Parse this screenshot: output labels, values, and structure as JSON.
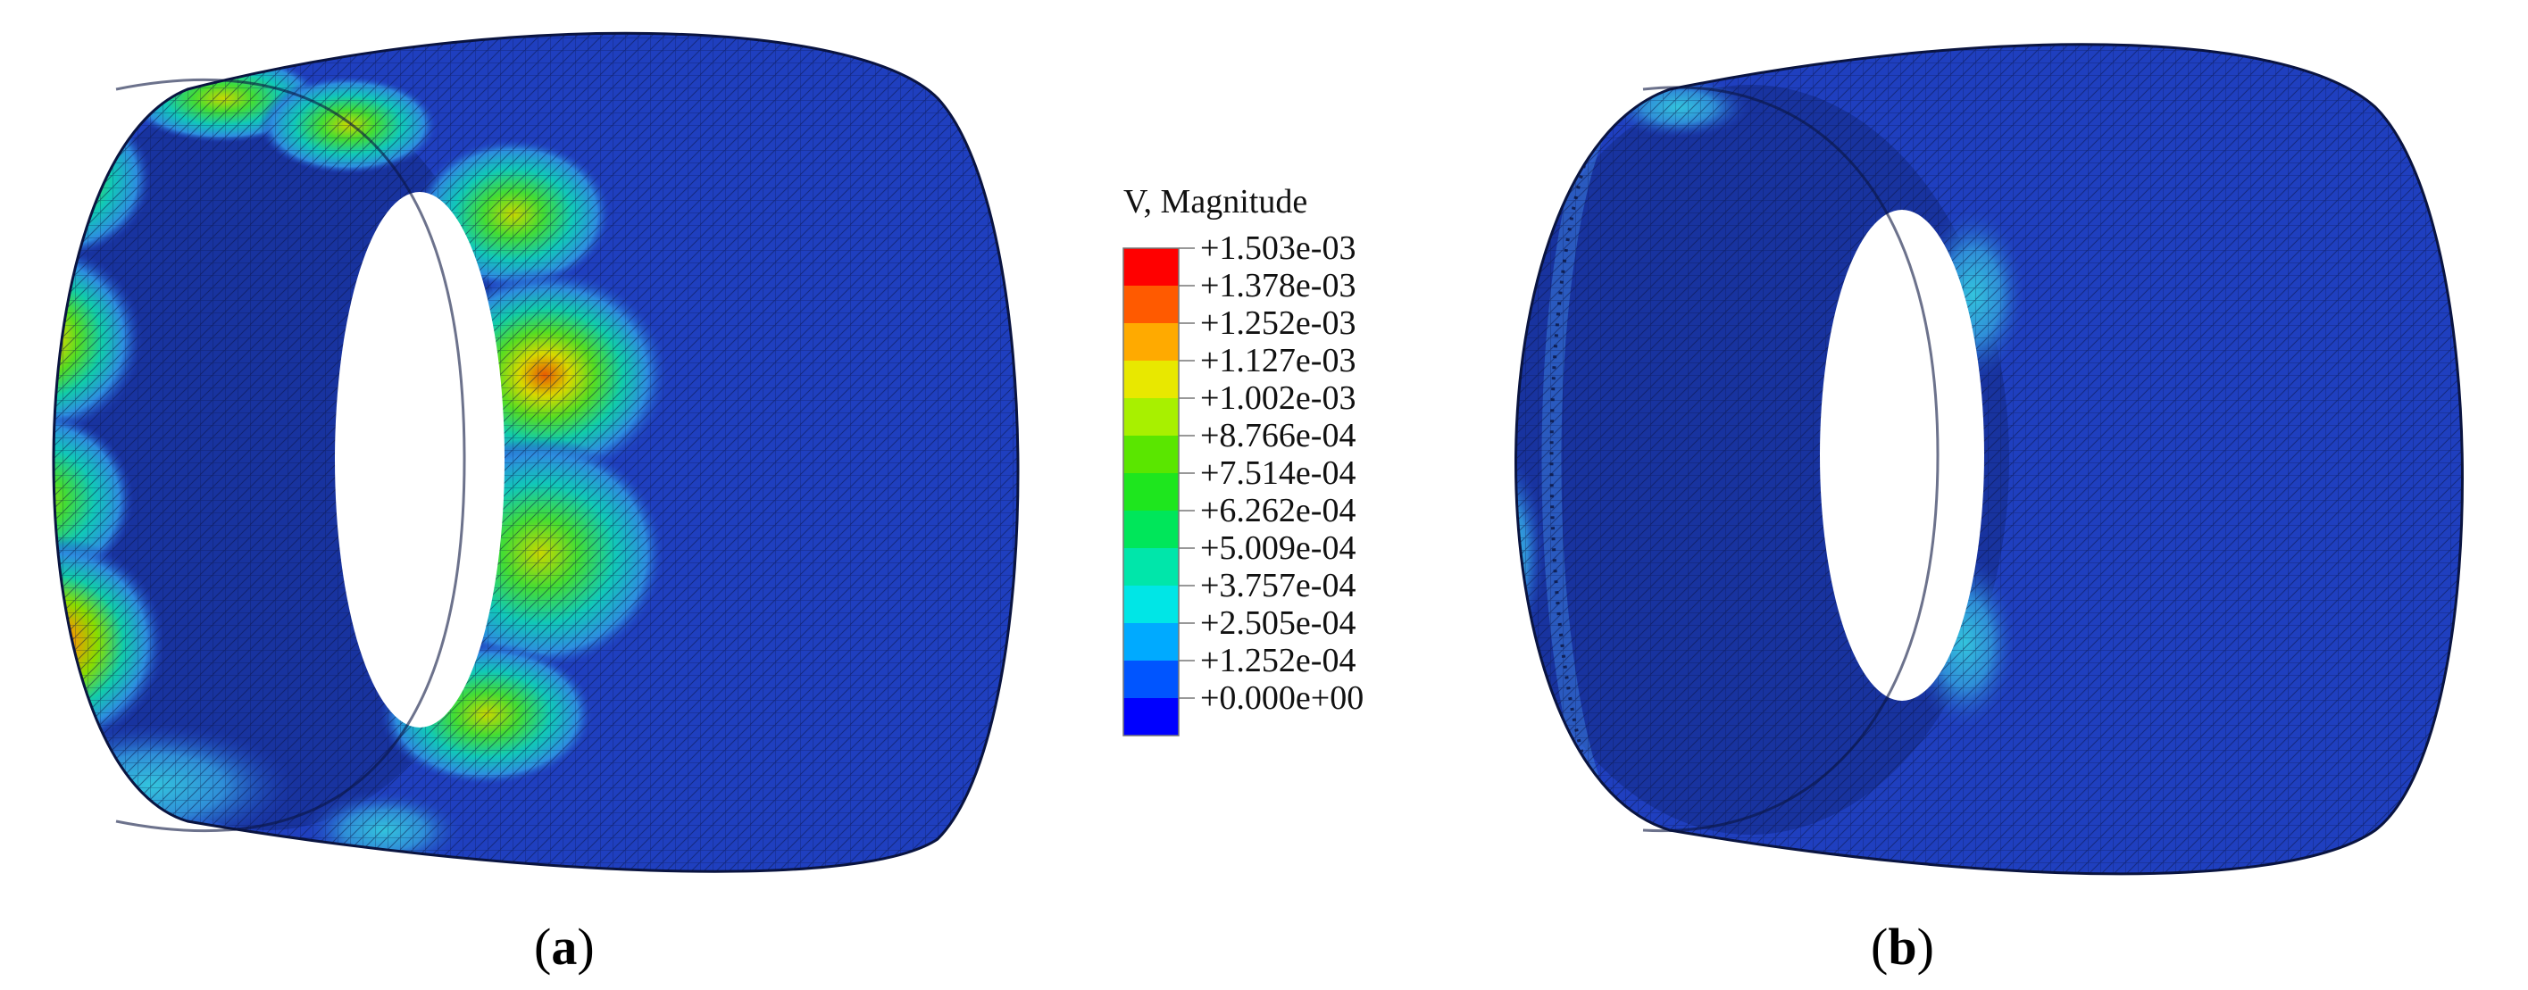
{
  "legend": {
    "title": "V, Magnitude",
    "labels": [
      "+1.503e-03",
      "+1.378e-03",
      "+1.252e-03",
      "+1.127e-03",
      "+1.002e-03",
      "+8.766e-04",
      "+7.514e-04",
      "+6.262e-04",
      "+5.009e-04",
      "+3.757e-04",
      "+2.505e-04",
      "+1.252e-04",
      "+0.000e+00"
    ],
    "colors": [
      "#ff0000",
      "#ff5a00",
      "#ffaa00",
      "#e8e800",
      "#a8f000",
      "#5ae600",
      "#1ee61e",
      "#00e65a",
      "#00e6aa",
      "#00e6e6",
      "#00aaff",
      "#0055ff",
      "#0000ff"
    ]
  },
  "captions": {
    "a": {
      "open": "(",
      "letter": "a",
      "close": ")"
    },
    "b": {
      "open": "(",
      "letter": "b",
      "close": ")"
    }
  },
  "colors": {
    "shell_body": "#1f3fbf",
    "shell_dark": "#0c2a8c",
    "mesh_line": "#0a1440",
    "background": "#ffffff"
  }
}
